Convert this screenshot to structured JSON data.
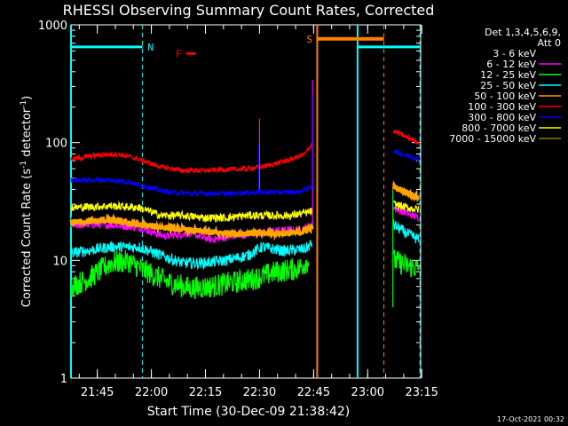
{
  "chart_data": {
    "type": "line",
    "title": "RHESSI Observing Summary Count Rates, Corrected",
    "xlabel": "Start Time (30-Dec-09 21:38:42)",
    "ylabel": "Corrected Count Rate (s⁻¹ detector⁻¹)",
    "ylabel_main": "Corrected Count Rate (s",
    "ylabel_sup1": "-1",
    "ylabel_mid": " detector",
    "ylabel_sup2": "-1",
    "ylabel_end": ")",
    "yscale": "log",
    "ylim": [
      1,
      1000
    ],
    "xlim_min": [
      -1,
      96
    ],
    "x_unit": "minutes after 21:38:42",
    "x_ticks": [
      {
        "label": "21:45",
        "min": 6.3
      },
      {
        "label": "22:00",
        "min": 21.3
      },
      {
        "label": "22:15",
        "min": 36.3
      },
      {
        "label": "22:30",
        "min": 51.3
      },
      {
        "label": "22:45",
        "min": 66.3
      },
      {
        "label": "23:00",
        "min": 81.3
      },
      {
        "label": "23:15",
        "min": 96.3
      }
    ],
    "y_ticks": [
      {
        "label": "1",
        "value": 1
      },
      {
        "label": "10",
        "value": 10
      },
      {
        "label": "100",
        "value": 100
      },
      {
        "label": "1000",
        "value": 1000
      }
    ],
    "legend_header": [
      "Det 1,3,4,5,6,9,",
      "Att 0"
    ],
    "legend_position": "top-right",
    "series": [
      {
        "name": "3 - 6 keV",
        "color": "#000000",
        "pts": [
          [
            -1,
            22
          ],
          [
            10,
            21
          ],
          [
            18,
            19
          ],
          [
            25,
            18
          ],
          [
            30,
            16
          ],
          [
            36,
            15
          ],
          [
            42,
            15
          ],
          [
            48,
            16
          ],
          [
            51,
            27
          ],
          [
            55,
            24
          ],
          [
            60,
            20
          ],
          [
            66,
            24
          ]
        ],
        "post": [
          [
            88.5,
            32
          ],
          [
            92,
            30
          ],
          [
            95.5,
            27
          ]
        ]
      },
      {
        "name": "6 - 12 keV",
        "color": "#ff00ff",
        "pts": [
          [
            -1,
            20
          ],
          [
            10,
            20
          ],
          [
            18,
            19
          ],
          [
            25,
            16
          ],
          [
            32,
            17
          ],
          [
            38,
            15
          ],
          [
            44,
            16
          ],
          [
            50,
            17
          ],
          [
            56,
            18
          ],
          [
            62,
            18
          ],
          [
            66,
            20
          ]
        ],
        "post": [
          [
            88.5,
            28
          ],
          [
            92,
            25
          ],
          [
            95.5,
            23
          ]
        ]
      },
      {
        "name": "12 - 25 keV",
        "color": "#00ff00",
        "pts": [
          [
            -1,
            6
          ],
          [
            4,
            7
          ],
          [
            10,
            9.5
          ],
          [
            15,
            9.8
          ],
          [
            20,
            8
          ],
          [
            26,
            6.5
          ],
          [
            32,
            5.8
          ],
          [
            38,
            6
          ],
          [
            44,
            6.5
          ],
          [
            50,
            7
          ],
          [
            56,
            8
          ],
          [
            62,
            8.5
          ],
          [
            65,
            10
          ]
        ],
        "post": [
          [
            88.5,
            10
          ],
          [
            92,
            9
          ],
          [
            95.5,
            8.5
          ]
        ]
      },
      {
        "name": "25 - 50 keV",
        "color": "#00ffff",
        "pts": [
          [
            -1,
            11.5
          ],
          [
            10,
            13
          ],
          [
            18,
            13
          ],
          [
            24,
            11
          ],
          [
            30,
            9.5
          ],
          [
            36,
            9.5
          ],
          [
            42,
            10
          ],
          [
            48,
            11
          ],
          [
            52,
            13
          ],
          [
            58,
            12
          ],
          [
            64,
            12.5
          ],
          [
            66,
            14
          ]
        ],
        "post": [
          [
            88.5,
            20
          ],
          [
            92,
            17
          ],
          [
            95.5,
            15
          ]
        ]
      },
      {
        "name": "50 - 100 keV",
        "color": "#ffa500",
        "pts": [
          [
            -1,
            21
          ],
          [
            10,
            22
          ],
          [
            18,
            20
          ],
          [
            25,
            19
          ],
          [
            32,
            18
          ],
          [
            40,
            17
          ],
          [
            48,
            17
          ],
          [
            56,
            17
          ],
          [
            62,
            17
          ],
          [
            66,
            19
          ]
        ],
        "post": [
          [
            88.5,
            42
          ],
          [
            92,
            38
          ],
          [
            95.5,
            34
          ]
        ]
      },
      {
        "name": "100 - 300 keV",
        "color": "#ff0000",
        "pts": [
          [
            -1,
            72
          ],
          [
            6,
            78
          ],
          [
            12,
            80
          ],
          [
            18,
            72
          ],
          [
            24,
            62
          ],
          [
            30,
            58
          ],
          [
            36,
            58
          ],
          [
            42,
            59
          ],
          [
            48,
            60
          ],
          [
            54,
            64
          ],
          [
            60,
            72
          ],
          [
            64,
            80
          ],
          [
            66,
            100
          ]
        ],
        "post": [
          [
            88.5,
            125
          ],
          [
            92,
            112
          ],
          [
            95.5,
            100
          ]
        ]
      },
      {
        "name": "300 - 800 keV",
        "color": "#0000ff",
        "pts": [
          [
            -1,
            48
          ],
          [
            8,
            48
          ],
          [
            14,
            47
          ],
          [
            20,
            42
          ],
          [
            26,
            38
          ],
          [
            32,
            37
          ],
          [
            38,
            37
          ],
          [
            44,
            37
          ],
          [
            50,
            38
          ],
          [
            56,
            38
          ],
          [
            62,
            38
          ],
          [
            66,
            42
          ]
        ],
        "post": [
          [
            88.5,
            85
          ],
          [
            92,
            78
          ],
          [
            95.5,
            72
          ]
        ]
      },
      {
        "name": "800 - 7000 keV",
        "color": "#ffff00",
        "pts": [
          [
            -1,
            28
          ],
          [
            10,
            29
          ],
          [
            18,
            28
          ],
          [
            24,
            24
          ],
          [
            30,
            24
          ],
          [
            36,
            23
          ],
          [
            42,
            23
          ],
          [
            48,
            24
          ],
          [
            54,
            24
          ],
          [
            60,
            24
          ],
          [
            66,
            26
          ]
        ],
        "post": [
          [
            88.5,
            30
          ],
          [
            92,
            28
          ],
          [
            95.5,
            27
          ]
        ]
      },
      {
        "name": "7000 - 15000 keV",
        "color": "#808000",
        "pts": [],
        "post": []
      }
    ],
    "annotations": {
      "night_intervals": [
        {
          "label": "N",
          "start": -1,
          "end": 18.8,
          "level": 650,
          "color": "#00ffff"
        },
        {
          "label": "",
          "start": 78.5,
          "end": 95.8,
          "level": 650,
          "color": "#00ffff"
        }
      ],
      "saa_intervals": [
        {
          "label": "S",
          "start": 67.3,
          "end": 85.8,
          "level": 760,
          "color": "#ff7f00"
        }
      ],
      "flare_marks": [
        {
          "label": "F",
          "start": 31,
          "end": 33.5,
          "level": 570,
          "color": "#ff0000"
        }
      ]
    },
    "grid": false
  },
  "footer": {
    "timestamp": "17-Oct-2021 00:32"
  }
}
